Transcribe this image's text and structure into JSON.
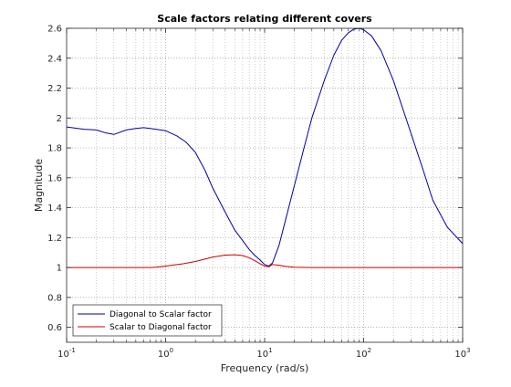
{
  "chart_data": {
    "type": "line",
    "title": "Scale factors relating different covers",
    "xlabel": "Frequency (rad/s)",
    "ylabel": "Magnitude",
    "xscale": "log",
    "xlim": [
      0.1,
      1000
    ],
    "ylim": [
      0.5,
      2.6
    ],
    "grid": true,
    "minor_grid_x": true,
    "legend_position": "bottom-left",
    "x_ticks": [
      {
        "value": 0.1,
        "base": "10",
        "exp": "-1"
      },
      {
        "value": 1,
        "base": "10",
        "exp": "0"
      },
      {
        "value": 10,
        "base": "10",
        "exp": "1"
      },
      {
        "value": 100,
        "base": "10",
        "exp": "2"
      },
      {
        "value": 1000,
        "base": "10",
        "exp": "3"
      }
    ],
    "y_ticks": [
      {
        "value": 0.6,
        "label": "0.6"
      },
      {
        "value": 0.8,
        "label": "0.8"
      },
      {
        "value": 1.0,
        "label": "1"
      },
      {
        "value": 1.2,
        "label": "1.2"
      },
      {
        "value": 1.4,
        "label": "1.4"
      },
      {
        "value": 1.6,
        "label": "1.6"
      },
      {
        "value": 1.8,
        "label": "1.8"
      },
      {
        "value": 2.0,
        "label": "2"
      },
      {
        "value": 2.2,
        "label": "2.2"
      },
      {
        "value": 2.4,
        "label": "2.4"
      },
      {
        "value": 2.6,
        "label": "2.6"
      }
    ],
    "series": [
      {
        "name": "Diagonal to Scalar factor",
        "color": "#0000aa",
        "x": [
          0.1,
          0.15,
          0.2,
          0.25,
          0.3,
          0.4,
          0.5,
          0.6,
          0.7,
          0.8,
          1.0,
          1.3,
          1.6,
          2.0,
          2.5,
          3.0,
          4.0,
          5.0,
          6.0,
          7.0,
          8.0,
          9.0,
          10.0,
          11.0,
          12.0,
          14.0,
          16.0,
          20.0,
          25.0,
          30.0,
          40.0,
          50.0,
          60.0,
          70.0,
          80.0,
          90.0,
          100.0,
          120.0,
          150.0,
          200.0,
          300.0,
          400.0,
          500.0,
          700.0,
          1000.0
        ],
        "y": [
          1.94,
          1.925,
          1.92,
          1.9,
          1.89,
          1.92,
          1.93,
          1.935,
          1.93,
          1.925,
          1.915,
          1.88,
          1.84,
          1.77,
          1.65,
          1.53,
          1.37,
          1.25,
          1.18,
          1.12,
          1.08,
          1.05,
          1.02,
          1.01,
          1.03,
          1.15,
          1.3,
          1.55,
          1.8,
          2.0,
          2.25,
          2.42,
          2.52,
          2.57,
          2.595,
          2.6,
          2.59,
          2.55,
          2.45,
          2.25,
          1.9,
          1.65,
          1.45,
          1.27,
          1.16
        ]
      },
      {
        "name": "Scalar to Diagonal factor",
        "color": "#cc0000",
        "x": [
          0.1,
          0.3,
          0.5,
          0.7,
          0.8,
          1.0,
          1.5,
          2.0,
          3.0,
          4.0,
          5.0,
          6.0,
          7.0,
          8.0,
          9.0,
          10.0,
          11.0,
          12.0,
          14.0,
          16.0,
          20.0,
          30.0,
          50.0,
          100.0,
          300.0,
          1000.0
        ],
        "y": [
          1.0,
          1.0,
          1.0,
          1.0,
          1.002,
          1.01,
          1.025,
          1.04,
          1.07,
          1.083,
          1.085,
          1.08,
          1.065,
          1.045,
          1.025,
          1.01,
          1.005,
          1.02,
          1.015,
          1.008,
          1.002,
          1.0,
          1.0,
          1.0,
          1.0,
          1.0
        ]
      }
    ]
  }
}
